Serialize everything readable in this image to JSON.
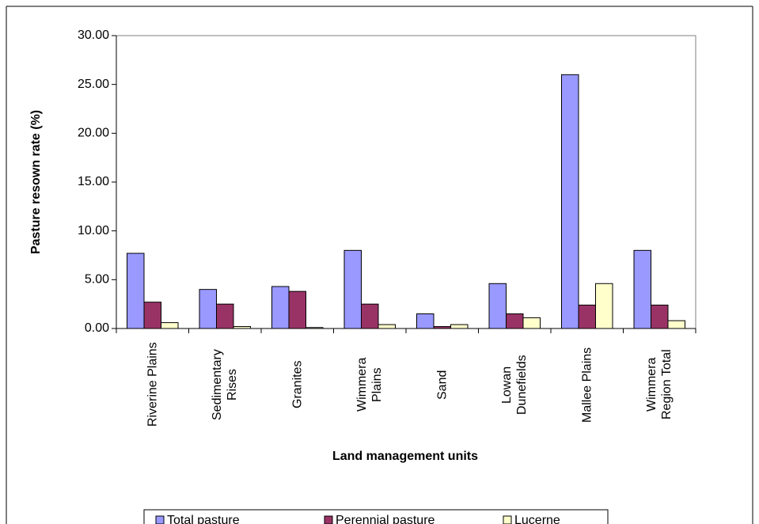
{
  "chart_data": {
    "type": "bar",
    "ylabel": "Pasture resown rate (%)",
    "xlabel": "Land management units",
    "categories": [
      "Riverine Plains",
      "Sedimentary Rises",
      "Granites",
      "Wimmera Plains",
      "Sand",
      "Lowan Dunefields",
      "Mallee Plains",
      "Wimmera Region Total"
    ],
    "series": [
      {
        "name": "Total pasture",
        "color": "#9999ff",
        "values": [
          7.7,
          4.0,
          4.3,
          8.0,
          1.5,
          4.6,
          26.0,
          8.0
        ]
      },
      {
        "name": "Perennial pasture",
        "color": "#993366",
        "values": [
          2.7,
          2.5,
          3.8,
          2.5,
          0.2,
          1.5,
          2.4,
          2.4
        ]
      },
      {
        "name": "Lucerne",
        "color": "#ffffcc",
        "values": [
          0.6,
          0.2,
          0.1,
          0.4,
          0.4,
          1.1,
          4.6,
          0.8
        ]
      }
    ],
    "ylim": [
      0,
      30
    ],
    "yticks": [
      {
        "value": 0,
        "label": "0.00"
      },
      {
        "value": 5,
        "label": "5.00"
      },
      {
        "value": 10,
        "label": "10.00"
      },
      {
        "value": 15,
        "label": "15.00"
      },
      {
        "value": 20,
        "label": "20.00"
      },
      {
        "value": 25,
        "label": "25.00"
      },
      {
        "value": 30,
        "label": "30.00"
      }
    ],
    "legend": "bottom"
  }
}
